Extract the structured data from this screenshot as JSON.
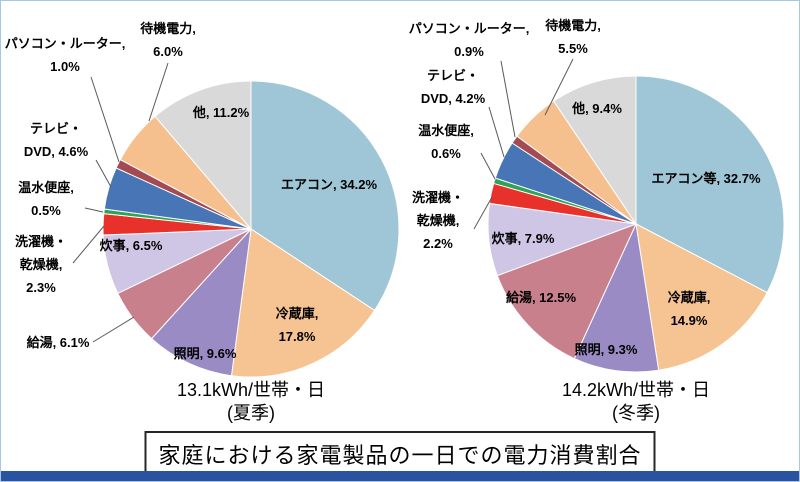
{
  "page": {
    "border_color": "#a6c8e4",
    "bottom_bar_color": "#2a52a2",
    "background": "#ffffff"
  },
  "title_box": {
    "text": "家庭における家電製品の一日での電力消費割合"
  },
  "chart_data": [
    {
      "type": "pie",
      "season": "夏季",
      "caption_line1": "13.1kWh/世帯・日",
      "caption_line2": "(夏季)",
      "unit": "%",
      "series": [
        {
          "name": "エアコン",
          "value": 34.2,
          "color": "#9FC6D6",
          "label_lines": [
            "エアコン, 34.2%"
          ]
        },
        {
          "name": "冷蔵庫",
          "value": 17.8,
          "color": "#F6C392",
          "label_lines": [
            "冷蔵庫,",
            "17.8%"
          ]
        },
        {
          "name": "照明",
          "value": 9.6,
          "color": "#9A8BC4",
          "label_lines": [
            "照明, 9.6%"
          ]
        },
        {
          "name": "給湯",
          "value": 6.1,
          "color": "#C8808D",
          "label_lines": [
            "給湯, 6.1%"
          ]
        },
        {
          "name": "炊事",
          "value": 6.5,
          "color": "#CFC5E4",
          "label_lines": [
            "炊事, 6.5%"
          ]
        },
        {
          "name": "洗濯機・乾燥機",
          "value": 2.3,
          "color": "#E8312A",
          "label_lines": [
            "洗濯機・",
            "乾燥機,",
            "2.3%"
          ]
        },
        {
          "name": "温水便座",
          "value": 0.5,
          "color": "#2FA254",
          "label_lines": [
            "温水便座,",
            "0.5%"
          ]
        },
        {
          "name": "テレビ・DVD",
          "value": 4.6,
          "color": "#4775B5",
          "label_lines": [
            "テレビ・",
            "DVD, 4.6%"
          ]
        },
        {
          "name": "パソコン・ルーター",
          "value": 1.0,
          "color": "#A34A52",
          "label_lines": [
            "パソコン・ルーター,",
            "1.0%"
          ]
        },
        {
          "name": "待機電力",
          "value": 6.0,
          "color": "#F5C08E",
          "label_lines": [
            "待機電力,",
            "6.0%"
          ]
        },
        {
          "name": "他",
          "value": 11.2,
          "color": "#D9D9D9",
          "label_lines": [
            "他, 11.2%"
          ]
        }
      ]
    },
    {
      "type": "pie",
      "season": "冬季",
      "caption_line1": "14.2kWh/世帯・日",
      "caption_line2": "(冬季)",
      "unit": "%",
      "series": [
        {
          "name": "エアコン等",
          "value": 32.7,
          "color": "#9FC6D6",
          "label_lines": [
            "エアコン等, 32.7%"
          ]
        },
        {
          "name": "冷蔵庫",
          "value": 14.9,
          "color": "#F6C392",
          "label_lines": [
            "冷蔵庫,",
            "14.9%"
          ]
        },
        {
          "name": "照明",
          "value": 9.3,
          "color": "#9A8BC4",
          "label_lines": [
            "照明, 9.3%"
          ]
        },
        {
          "name": "給湯",
          "value": 12.5,
          "color": "#C8808D",
          "label_lines": [
            "給湯, 12.5%"
          ]
        },
        {
          "name": "炊事",
          "value": 7.9,
          "color": "#CFC5E4",
          "label_lines": [
            "炊事, 7.9%"
          ]
        },
        {
          "name": "洗濯機・乾燥機",
          "value": 2.2,
          "color": "#E8312A",
          "label_lines": [
            "洗濯機・",
            "乾燥機,",
            "2.2%"
          ]
        },
        {
          "name": "温水便座",
          "value": 0.6,
          "color": "#2FA254",
          "label_lines": [
            "温水便座,",
            "0.6%"
          ]
        },
        {
          "name": "テレビ・DVD",
          "value": 4.2,
          "color": "#4775B5",
          "label_lines": [
            "テレビ・",
            "DVD, 4.2%"
          ]
        },
        {
          "name": "パソコン・ルーター",
          "value": 0.9,
          "color": "#A34A52",
          "label_lines": [
            "パソコン・ルーター,",
            "0.9%"
          ]
        },
        {
          "name": "待機電力",
          "value": 5.5,
          "color": "#F5C08E",
          "label_lines": [
            "待機電力,",
            "5.5%"
          ]
        },
        {
          "name": "他",
          "value": 9.4,
          "color": "#D9D9D9",
          "label_lines": [
            "他, 9.4%"
          ]
        }
      ]
    }
  ]
}
